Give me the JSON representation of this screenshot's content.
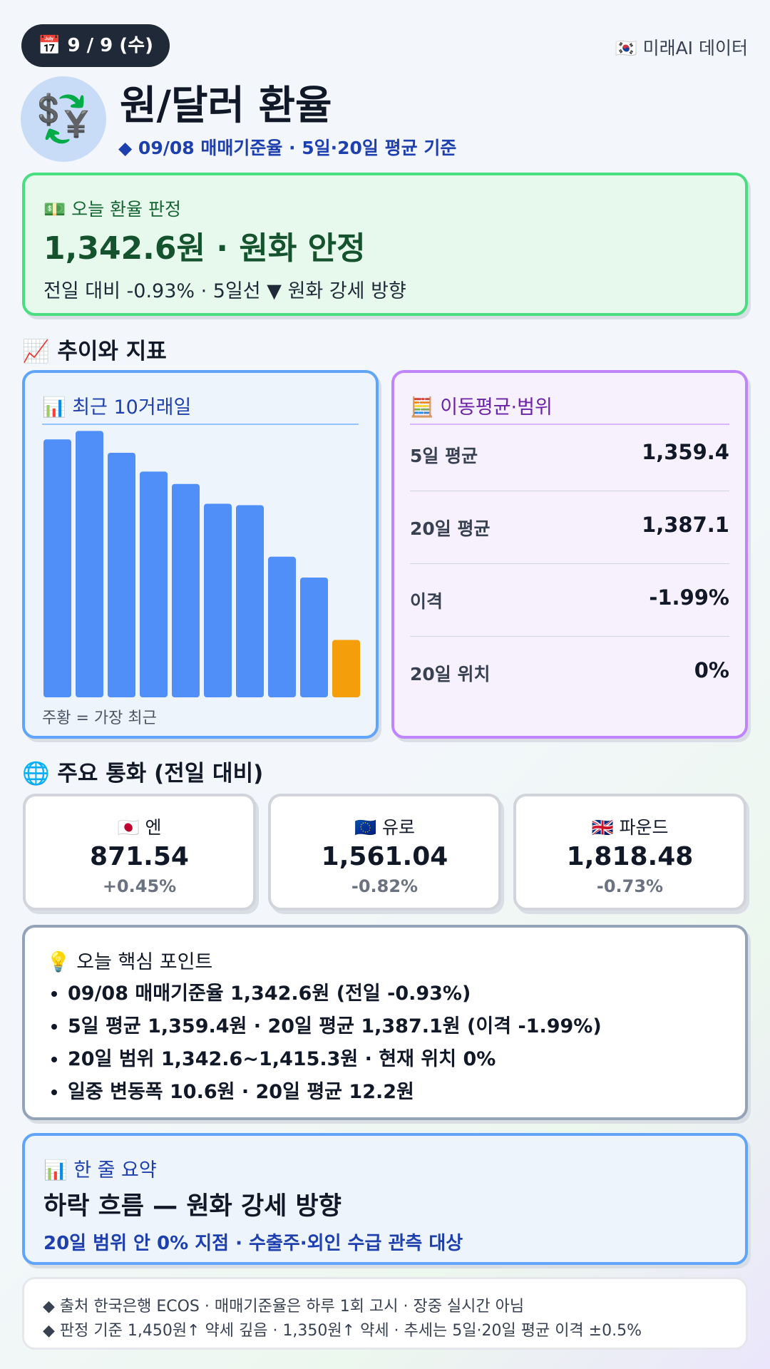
{
  "header": {
    "date": "📅 9 / 9 (수)",
    "source": "🇰🇷 미래AI 데이터",
    "icon": "💱",
    "title": "원/달러 환율",
    "subtitle": "◆ 09/08 매매기준율 · 5일·20일 평균 기준"
  },
  "verdict": {
    "label": "💵 오늘 환율 판정",
    "headline": "1,342.6원 · 원화 안정",
    "detail": "전일 대비 -0.93% · 5일선 ▼ 원화 강세 방향"
  },
  "trend_section": "📈 추이와 지표",
  "chart_data": {
    "type": "bar",
    "title": "📊 최근 10거래일",
    "values": [
      1383.1,
      1384.8,
      1380.4,
      1376.6,
      1374.1,
      1370.1,
      1369.8,
      1359.4,
      1355.2,
      1342.6
    ],
    "color": "#4f8ff7",
    "latest_color": "#f59e0b",
    "ylim": [
      1331,
      1385
    ],
    "note": "주황 = 가장 최근"
  },
  "moving_average": {
    "title": "🧮 이동평균·범위",
    "rows": [
      [
        "5일 평균",
        "1,359.4"
      ],
      [
        "20일 평균",
        "1,387.1"
      ],
      [
        "이격",
        "-1.99%"
      ],
      [
        "20일 위치",
        "0%"
      ]
    ]
  },
  "currency_section": "🌐 주요 통화 (전일 대비)",
  "currencies": [
    [
      "🇯🇵 엔",
      "871.54",
      "+0.45%"
    ],
    [
      "🇪🇺 유로",
      "1,561.04",
      "-0.82%"
    ],
    [
      "🇬🇧 파운드",
      "1,818.48",
      "-0.73%"
    ]
  ],
  "points": {
    "title": "💡 오늘 핵심 포인트",
    "items": [
      "09/08 매매기준율 1,342.6원 (전일 -0.93%)",
      "5일 평균 1,359.4원 · 20일 평균 1,387.1원 (이격 -1.99%)",
      "20일 범위 1,342.6~1,415.3원 · 현재 위치 0%",
      "일중 변동폭 10.6원 · 20일 평균 12.2원"
    ]
  },
  "summary": {
    "title": "📊 한 줄 요약",
    "headline": "하락 흐름 — 원화 강세 방향",
    "detail": "20일 범위 안 0% 지점 · 수출주·외인 수급 관측 대상"
  },
  "footer": [
    "◆ 출처 한국은행 ECOS · 매매기준율은 하루 1회 고시 · 장중 실시간 아님",
    "◆ 판정 기준 1,450원↑ 약세 깊음 · 1,350원↑ 약세 · 추세는 5일·20일 평균 이격 ±0.5%"
  ]
}
